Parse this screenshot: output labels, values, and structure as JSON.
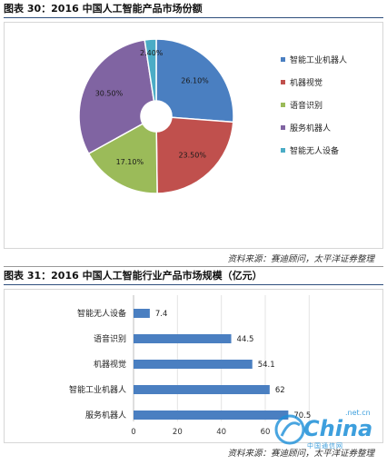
{
  "figure1": {
    "title": "图表 30：2016 中国人工智能产品市场份额",
    "source": "资料来源：赛迪顾问，太平洋证券整理"
  },
  "figure2": {
    "title": "图表 31：2016 中国人工智能行业产品市场规模（亿元）",
    "source": "资料来源：赛迪顾问，太平洋证券整理"
  },
  "watermark": {
    "text": "China",
    "suffix": ".net.cn",
    "sub": "中国通信网"
  },
  "chart_data": [
    {
      "type": "pie",
      "title": "",
      "categories": [
        "智能工业机器人",
        "机器视觉",
        "语音识别",
        "服务机器人",
        "智能无人设备"
      ],
      "values": [
        26.1,
        23.5,
        17.1,
        30.5,
        2.4
      ],
      "labels": [
        "26.10%",
        "23.50%",
        "17.10%",
        "30.50%",
        "2.40%"
      ],
      "colors": [
        "#4a7fc1",
        "#c0504d",
        "#9bbb59",
        "#8064a2",
        "#4bacc6"
      ],
      "donut": true,
      "legend": "right"
    },
    {
      "type": "bar",
      "orientation": "horizontal",
      "title": "",
      "categories": [
        "智能无人设备",
        "语音识别",
        "机器视觉",
        "智能工业机器人",
        "服务机器人"
      ],
      "values": [
        7.4,
        44.5,
        54.1,
        62,
        70.5
      ],
      "labels": [
        "7.4",
        "44.5",
        "54.1",
        "62",
        "70.5"
      ],
      "xlim": [
        0,
        80
      ],
      "xticks": [
        "0",
        "20",
        "40",
        "60"
      ],
      "color": "#4a7fc1",
      "grid": true
    }
  ]
}
